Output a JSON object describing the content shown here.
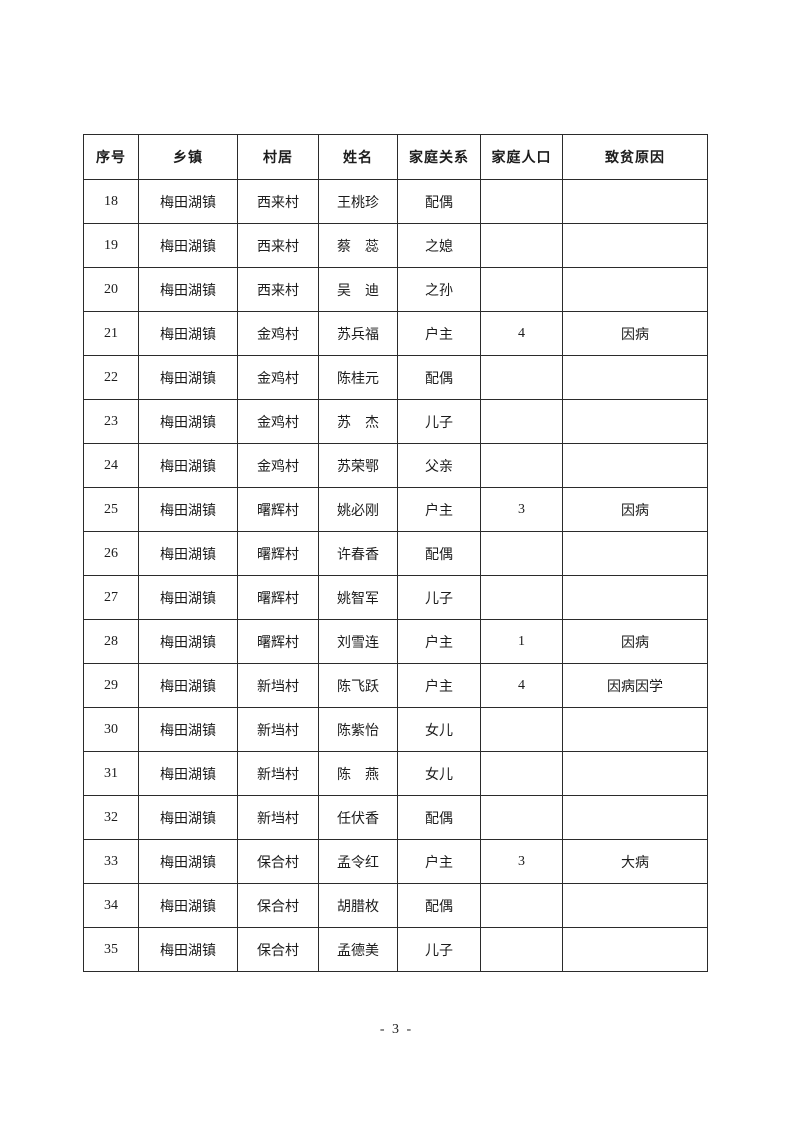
{
  "document": {
    "footer_page_number": "- 3 -"
  },
  "table": {
    "headers": [
      "序号",
      "乡镇",
      "村居",
      "姓名",
      "家庭关系",
      "家庭人口",
      "致贫原因"
    ],
    "column_keys": [
      "index",
      "township",
      "village",
      "name",
      "relation",
      "population",
      "cause"
    ],
    "rows": [
      [
        "18",
        "梅田湖镇",
        "西来村",
        "王桃珍",
        "配偶",
        "",
        ""
      ],
      [
        "19",
        "梅田湖镇",
        "西来村",
        "蔡　蕊",
        "之媳",
        "",
        ""
      ],
      [
        "20",
        "梅田湖镇",
        "西来村",
        "吴　迪",
        "之孙",
        "",
        ""
      ],
      [
        "21",
        "梅田湖镇",
        "金鸡村",
        "苏兵福",
        "户主",
        "4",
        "因病"
      ],
      [
        "22",
        "梅田湖镇",
        "金鸡村",
        "陈桂元",
        "配偶",
        "",
        ""
      ],
      [
        "23",
        "梅田湖镇",
        "金鸡村",
        "苏　杰",
        "儿子",
        "",
        ""
      ],
      [
        "24",
        "梅田湖镇",
        "金鸡村",
        "苏荣鄂",
        "父亲",
        "",
        ""
      ],
      [
        "25",
        "梅田湖镇",
        "曙辉村",
        "姚必刚",
        "户主",
        "3",
        "因病"
      ],
      [
        "26",
        "梅田湖镇",
        "曙辉村",
        "许春香",
        "配偶",
        "",
        ""
      ],
      [
        "27",
        "梅田湖镇",
        "曙辉村",
        "姚智军",
        "儿子",
        "",
        ""
      ],
      [
        "28",
        "梅田湖镇",
        "曙辉村",
        "刘雪连",
        "户主",
        "1",
        "因病"
      ],
      [
        "29",
        "梅田湖镇",
        "新垱村",
        "陈飞跃",
        "户主",
        "4",
        "因病因学"
      ],
      [
        "30",
        "梅田湖镇",
        "新垱村",
        "陈紫怡",
        "女儿",
        "",
        ""
      ],
      [
        "31",
        "梅田湖镇",
        "新垱村",
        "陈　燕",
        "女儿",
        "",
        ""
      ],
      [
        "32",
        "梅田湖镇",
        "新垱村",
        "任伏香",
        "配偶",
        "",
        ""
      ],
      [
        "33",
        "梅田湖镇",
        "保合村",
        "孟令红",
        "户主",
        "3",
        "大病"
      ],
      [
        "34",
        "梅田湖镇",
        "保合村",
        "胡腊枚",
        "配偶",
        "",
        ""
      ],
      [
        "35",
        "梅田湖镇",
        "保合村",
        "孟德美",
        "儿子",
        "",
        ""
      ]
    ]
  }
}
